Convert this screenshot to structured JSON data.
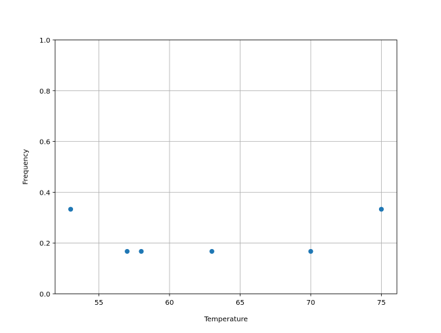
{
  "chart_data": {
    "type": "scatter",
    "title": "",
    "xlabel": "Temperature",
    "ylabel": "Frequency",
    "xlim": [
      51.9,
      76.1
    ],
    "ylim": [
      0.0,
      1.0
    ],
    "xticks": [
      55,
      60,
      65,
      70,
      75
    ],
    "xtick_labels": [
      "55",
      "60",
      "65",
      "70",
      "75"
    ],
    "yticks": [
      0.0,
      0.2,
      0.4,
      0.6,
      0.8,
      1.0
    ],
    "ytick_labels": [
      "0.0",
      "0.2",
      "0.4",
      "0.6",
      "0.8",
      "1.0"
    ],
    "grid": true,
    "points": [
      {
        "x": 53,
        "y": 0.333
      },
      {
        "x": 57,
        "y": 0.167
      },
      {
        "x": 58,
        "y": 0.167
      },
      {
        "x": 63,
        "y": 0.167
      },
      {
        "x": 70,
        "y": 0.167
      },
      {
        "x": 75,
        "y": 0.333
      }
    ],
    "colors": {
      "marker": "#1f77b4",
      "grid": "#b0b0b0",
      "axes": "#000000"
    }
  }
}
